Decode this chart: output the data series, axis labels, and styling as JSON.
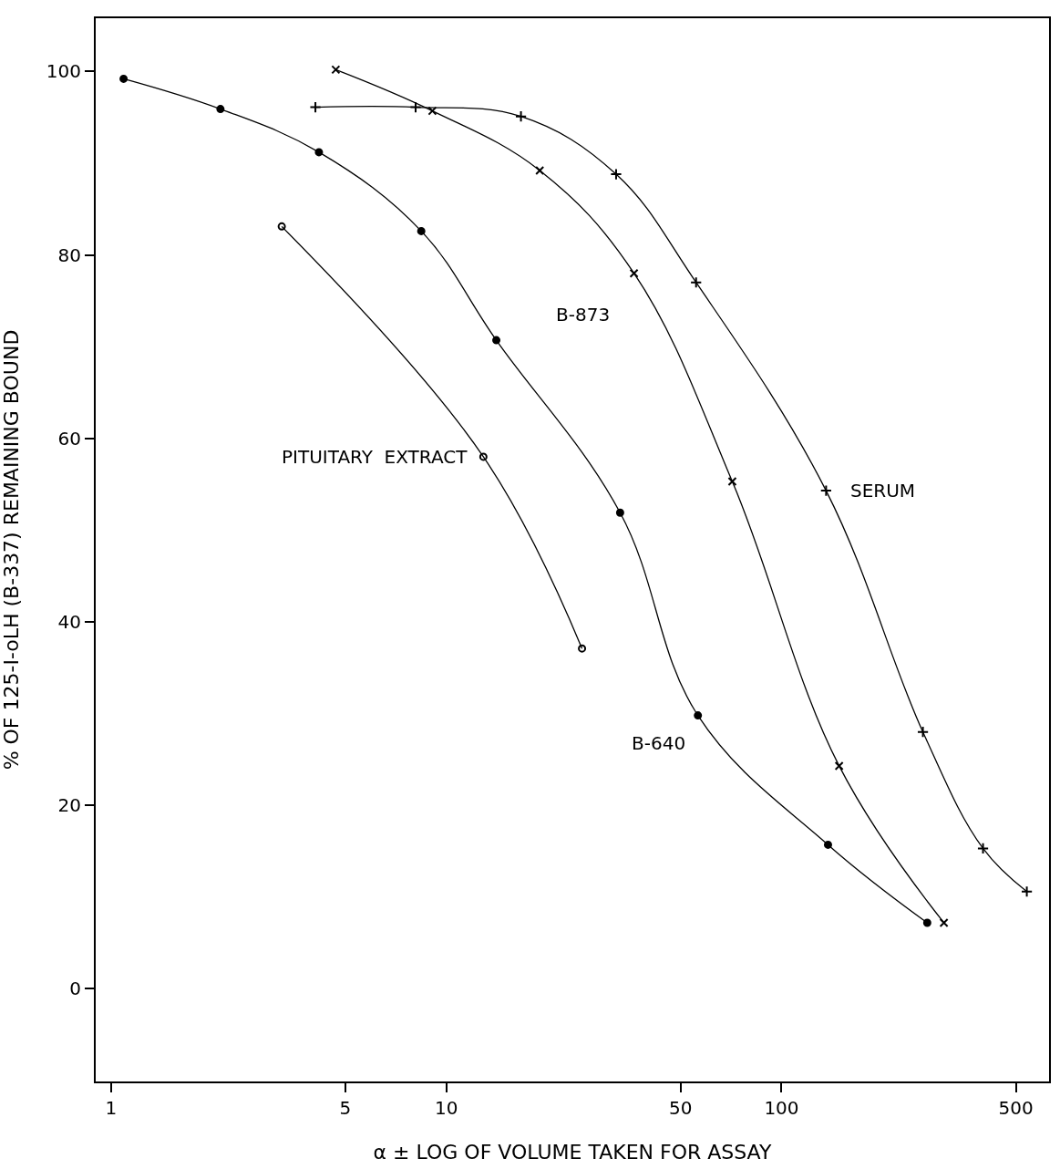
{
  "chart_data": {
    "type": "line",
    "xlabel": "α ± LOG OF VOLUME TAKEN FOR ASSAY",
    "ylabel": "% OF 125-I-oLH (B-337) REMAINING BOUND",
    "log": "x",
    "xlim": [
      0.9,
      628
    ],
    "ylim": [
      -10.1,
      105.8
    ],
    "xticks": [
      1,
      5,
      10,
      50,
      100,
      500
    ],
    "yticks": [
      0,
      20,
      40,
      60,
      80,
      100
    ],
    "legend": false,
    "line_style": "solid",
    "series": [
      {
        "name": "B-640",
        "color": "#000000",
        "marker": "circle",
        "x": [
          1.09,
          2.12,
          4.17,
          8.42,
          14.1,
          33.0,
          56.3,
          137.6,
          272
        ],
        "values": [
          99.2,
          95.9,
          91.2,
          82.6,
          70.7,
          51.9,
          29.8,
          15.7,
          7.2
        ]
      },
      {
        "name": "PITUITARY  EXTRACT",
        "color": "#000000",
        "marker": "circle-open",
        "x": [
          3.23,
          12.9,
          25.4
        ],
        "values": [
          83.1,
          58.0,
          37.1
        ]
      },
      {
        "name": "B-873",
        "color": "#000000",
        "marker": "x",
        "x": [
          4.68,
          9.09,
          19.0,
          36.3,
          71.3,
          148.5,
          305
        ],
        "values": [
          100.2,
          95.7,
          89.2,
          78.0,
          55.3,
          24.3,
          7.2
        ]
      },
      {
        "name": "SERUM",
        "color": "#000000",
        "marker": "cross",
        "x": [
          4.07,
          8.1,
          16.7,
          32.1,
          55.6,
          135.8,
          264,
          399,
          539
        ],
        "values": [
          96.1,
          96.1,
          95.1,
          88.8,
          77.0,
          54.3,
          28.0,
          15.3,
          10.6
        ]
      }
    ]
  }
}
